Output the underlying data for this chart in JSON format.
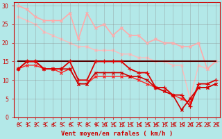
{
  "bg_color": "#b3e8e8",
  "grid_color": "#888888",
  "xlabel": "Vent moyen/en rafales ( km/h )",
  "xlim": [
    -0.5,
    23.5
  ],
  "ylim": [
    0,
    31
  ],
  "yticks": [
    0,
    5,
    10,
    15,
    20,
    25,
    30
  ],
  "xticks": [
    0,
    1,
    2,
    3,
    4,
    5,
    6,
    7,
    8,
    9,
    10,
    11,
    12,
    13,
    14,
    15,
    16,
    17,
    18,
    19,
    20,
    21,
    22,
    23
  ],
  "lines": [
    {
      "x": [
        0,
        1,
        2,
        3,
        4,
        5,
        6,
        7,
        8,
        9,
        10,
        11,
        12,
        13,
        14,
        15,
        16,
        17,
        18,
        19,
        20,
        21,
        22,
        23
      ],
      "y": [
        30,
        29,
        27,
        26,
        26,
        26,
        28,
        21,
        28,
        24,
        25,
        22,
        24,
        22,
        22,
        20,
        21,
        20,
        20,
        19,
        19,
        20,
        13,
        15
      ],
      "color": "#ffaaaa",
      "lw": 1.2,
      "marker": "x",
      "ms": 2.5,
      "zorder": 3
    },
    {
      "x": [
        0,
        1,
        2,
        3,
        4,
        5,
        6,
        7,
        8,
        9,
        10,
        11,
        12,
        13,
        14,
        15,
        16,
        17,
        18,
        19,
        20,
        21,
        22,
        23
      ],
      "y": [
        27,
        26,
        25,
        23,
        22,
        21,
        20,
        19,
        19,
        18,
        18,
        18,
        17,
        17,
        16,
        16,
        15,
        15,
        14,
        14,
        5,
        14,
        13,
        15
      ],
      "color": "#ffbbbb",
      "lw": 1.0,
      "marker": "x",
      "ms": 2.5,
      "zorder": 2
    },
    {
      "x": [
        0,
        1,
        2,
        3,
        4,
        5,
        6,
        7,
        8,
        9,
        10,
        11,
        12,
        13,
        14,
        15,
        16,
        17,
        18,
        19,
        20,
        21,
        22,
        23
      ],
      "y": [
        15,
        15,
        15,
        15,
        15,
        15,
        15,
        15,
        15,
        15,
        15,
        15,
        15,
        15,
        15,
        15,
        15,
        15,
        15,
        15,
        15,
        15,
        15,
        15
      ],
      "color": "#550000",
      "lw": 1.5,
      "marker": null,
      "ms": 0,
      "zorder": 4
    },
    {
      "x": [
        0,
        1,
        2,
        3,
        4,
        5,
        6,
        7,
        8,
        9,
        10,
        11,
        12,
        13,
        14,
        15,
        16,
        17,
        18,
        19,
        20,
        21,
        22,
        23
      ],
      "y": [
        13,
        15,
        15,
        13,
        13,
        13,
        15,
        10,
        10,
        15,
        15,
        15,
        15,
        13,
        12,
        12,
        8,
        8,
        6,
        6,
        3,
        9,
        9,
        10
      ],
      "color": "#dd0000",
      "lw": 1.3,
      "marker": "+",
      "ms": 4,
      "zorder": 5
    },
    {
      "x": [
        0,
        1,
        2,
        3,
        4,
        5,
        6,
        7,
        8,
        9,
        10,
        11,
        12,
        13,
        14,
        15,
        16,
        17,
        18,
        19,
        20,
        21,
        22,
        23
      ],
      "y": [
        13,
        14,
        14,
        13,
        13,
        12,
        13,
        9,
        9,
        11,
        11,
        11,
        11,
        11,
        10,
        9,
        8,
        7,
        6,
        5,
        4,
        8,
        8,
        9
      ],
      "color": "#ff2222",
      "lw": 1.0,
      "marker": "x",
      "ms": 2.5,
      "zorder": 3
    },
    {
      "x": [
        0,
        1,
        2,
        3,
        4,
        5,
        6,
        7,
        8,
        9,
        10,
        11,
        12,
        13,
        14,
        15,
        16,
        17,
        18,
        19,
        20,
        21,
        22,
        23
      ],
      "y": [
        13,
        15,
        15,
        13,
        13,
        13,
        13,
        9,
        9,
        12,
        12,
        12,
        12,
        11,
        11,
        10,
        8,
        7,
        6,
        2,
        5,
        8,
        8,
        9
      ],
      "color": "#cc0000",
      "lw": 1.2,
      "marker": "x",
      "ms": 2.5,
      "zorder": 4
    }
  ],
  "arrow_color": "#cc0000",
  "axis_label_fontsize": 6.5,
  "tick_fontsize": 5.5,
  "tick_color": "#cc0000",
  "spine_color": "#cc0000"
}
